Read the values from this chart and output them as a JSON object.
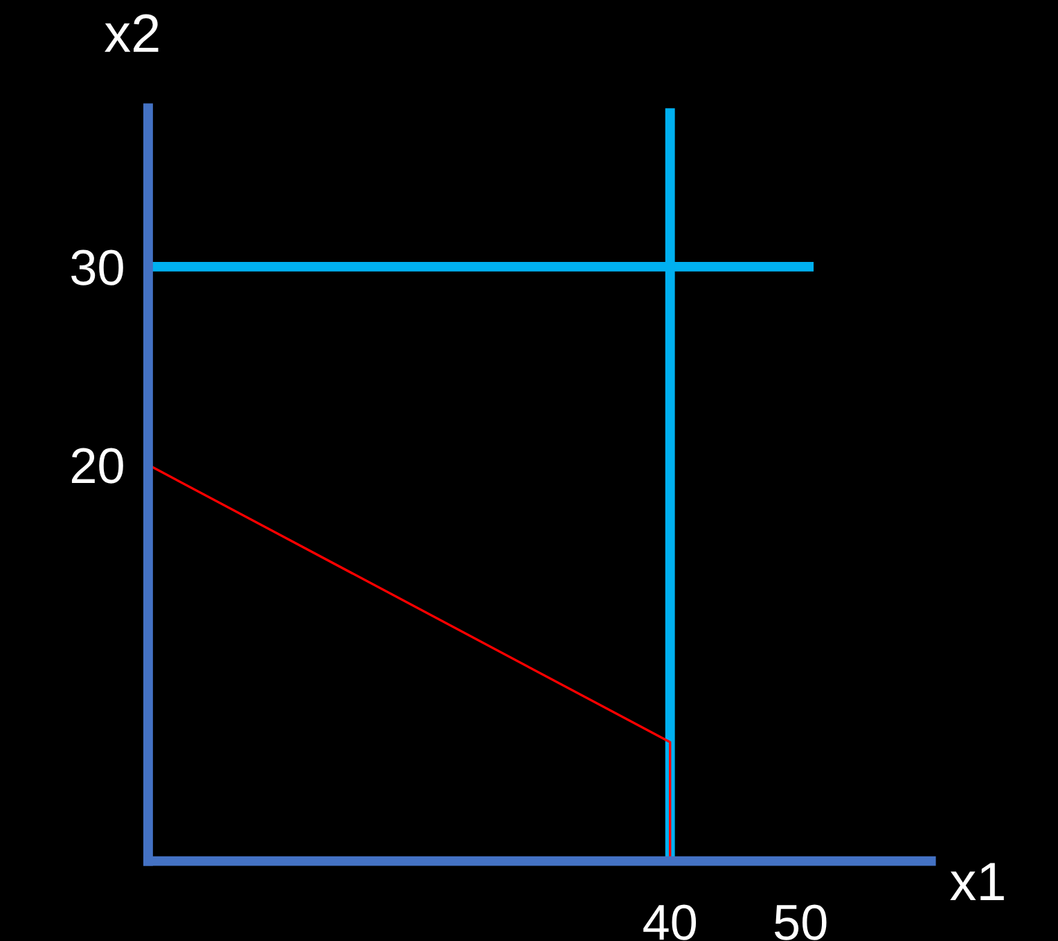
{
  "chart_data": {
    "type": "line",
    "xlabel": "x1",
    "ylabel": "x2",
    "xlim": [
      0,
      60
    ],
    "ylim": [
      0,
      38
    ],
    "xticks": [
      40,
      50
    ],
    "yticks": [
      20,
      30
    ],
    "grid": false,
    "legend": false,
    "marker": "none",
    "line_style": "solid",
    "series": [
      {
        "x": [
          0,
          51
        ],
        "values": [
          30,
          30
        ],
        "color": "#00b0f0"
      },
      {
        "x": [
          40,
          40
        ],
        "values": [
          0,
          38
        ],
        "color": "#00b0f0"
      },
      {
        "x": [
          0,
          40,
          40
        ],
        "values": [
          20,
          6,
          0
        ],
        "color": "#ff0000"
      }
    ]
  }
}
